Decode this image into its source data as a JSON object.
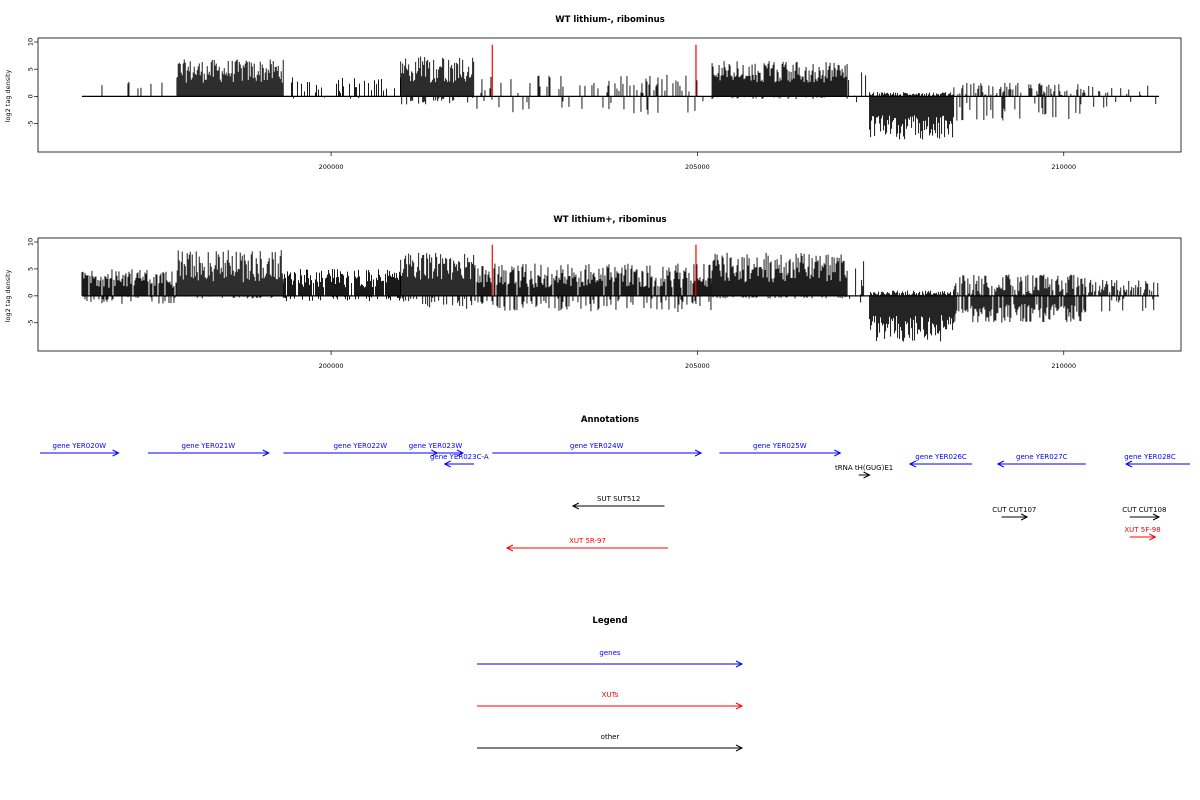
{
  "chart_data": [
    {
      "type": "bar",
      "title": "WT lithium-, ribominus",
      "xlabel": "",
      "ylabel": "log2 tag density",
      "xlim": [
        196000,
        211600
      ],
      "ylim": [
        -9.5,
        10
      ],
      "y_ticks": [
        "10",
        "5",
        "0",
        "-5"
      ],
      "x_ticks": [
        "200000",
        "205000",
        "210000"
      ],
      "grid": false,
      "marker_lines": {
        "x": [
          202200,
          204980
        ],
        "color": "#ff0000"
      },
      "series": [
        {
          "values_description_x": [
            196600,
            211300
          ],
          "segments": [
            {
              "x": [
                196600,
                197900
              ],
              "pos": [
                0.8,
                3.5
              ],
              "neg": [
                0,
                0
              ],
              "density": 0.12
            },
            {
              "x": [
                197900,
                199350
              ],
              "pos": [
                2.5,
                6.8
              ],
              "neg": [
                0,
                0
              ],
              "density": 1.0
            },
            {
              "x": [
                199350,
                200950
              ],
              "pos": [
                0.6,
                3.5
              ],
              "neg": [
                0,
                0.4
              ],
              "density": 0.25
            },
            {
              "x": [
                200950,
                201950
              ],
              "pos": [
                2.5,
                7.5
              ],
              "neg": [
                0,
                1.5
              ],
              "density": 1.0
            },
            {
              "x": [
                201950,
                205200
              ],
              "pos": [
                0.5,
                4.0
              ],
              "neg": [
                0.5,
                3.5
              ],
              "density": 0.22
            },
            {
              "x": [
                205200,
                207050
              ],
              "pos": [
                2.5,
                6.5
              ],
              "neg": [
                0,
                0.5
              ],
              "density": 1.0
            },
            {
              "x": [
                207050,
                207350
              ],
              "pos": [
                0,
                6.0
              ],
              "neg": [
                0,
                1.5
              ],
              "density": 0.2
            },
            {
              "x": [
                207350,
                208500
              ],
              "pos": [
                0,
                0.8
              ],
              "neg": [
                3.5,
                8.0
              ],
              "density": 1.0
            },
            {
              "x": [
                208500,
                210300
              ],
              "pos": [
                0,
                2.5
              ],
              "neg": [
                1.0,
                4.5
              ],
              "density": 0.6
            },
            {
              "x": [
                210300,
                211300
              ],
              "pos": [
                0,
                2.0
              ],
              "neg": [
                0.5,
                2.5
              ],
              "density": 0.25
            }
          ]
        }
      ]
    },
    {
      "type": "bar",
      "title": "WT lithium+, ribominus",
      "xlabel": "",
      "ylabel": "log2 tag density",
      "xlim": [
        196000,
        211600
      ],
      "ylim": [
        -9.5,
        10
      ],
      "y_ticks": [
        "10",
        "5",
        "0",
        "-5"
      ],
      "x_ticks": [
        "200000",
        "205000",
        "210000"
      ],
      "grid": false,
      "marker_lines": {
        "x": [
          202200,
          204980
        ],
        "color": "#ff0000"
      },
      "series": [
        {
          "segments": [
            {
              "x": [
                196600,
                197900
              ],
              "pos": [
                1.5,
                5.0
              ],
              "neg": [
                0,
                1.5
              ],
              "density": 0.9
            },
            {
              "x": [
                197900,
                199350
              ],
              "pos": [
                2.5,
                8.5
              ],
              "neg": [
                0,
                0.5
              ],
              "density": 1.0
            },
            {
              "x": [
                199350,
                200950
              ],
              "pos": [
                1.5,
                5.0
              ],
              "neg": [
                0,
                1.0
              ],
              "density": 0.9
            },
            {
              "x": [
                200950,
                201950
              ],
              "pos": [
                3.0,
                8.0
              ],
              "neg": [
                0,
                2.5
              ],
              "density": 1.0
            },
            {
              "x": [
                201950,
                205200
              ],
              "pos": [
                1.5,
                6.0
              ],
              "neg": [
                0.5,
                3.0
              ],
              "density": 0.9
            },
            {
              "x": [
                205200,
                207050
              ],
              "pos": [
                2.5,
                8.0
              ],
              "neg": [
                0,
                0.5
              ],
              "density": 1.0
            },
            {
              "x": [
                207050,
                207350
              ],
              "pos": [
                0,
                7.5
              ],
              "neg": [
                0,
                2.0
              ],
              "density": 0.2
            },
            {
              "x": [
                207350,
                208500
              ],
              "pos": [
                0,
                1.0
              ],
              "neg": [
                3.5,
                8.5
              ],
              "density": 1.0
            },
            {
              "x": [
                208500,
                210300
              ],
              "pos": [
                0,
                4.0
              ],
              "neg": [
                1.5,
                5.0
              ],
              "density": 0.85
            },
            {
              "x": [
                210300,
                211300
              ],
              "pos": [
                0.5,
                3.0
              ],
              "neg": [
                0.5,
                3.0
              ],
              "density": 0.6
            }
          ]
        }
      ]
    }
  ],
  "annotations": {
    "title": "Annotations",
    "items": [
      {
        "label": "gene YER020W",
        "color": "#0000ff",
        "x1": 196000,
        "x2": 197100,
        "dir": "right"
      },
      {
        "label": "gene YER021W",
        "color": "#0000ff",
        "x1": 197500,
        "x2": 199150,
        "dir": "right"
      },
      {
        "label": "gene YER022W",
        "color": "#0000ff",
        "x1": 199350,
        "x2": 201450,
        "dir": "right"
      },
      {
        "label": "gene YER023W",
        "color": "#0000ff",
        "x1": 201050,
        "x2": 201800,
        "dir": "right"
      },
      {
        "label": "gene YER023C-A",
        "color": "#0000ff",
        "x1": 201550,
        "x2": 201950,
        "dir": "left"
      },
      {
        "label": "gene YER024W",
        "color": "#0000ff",
        "x1": 202200,
        "x2": 205050,
        "dir": "right"
      },
      {
        "label": "gene YER025W",
        "color": "#0000ff",
        "x1": 205300,
        "x2": 206950,
        "dir": "right"
      },
      {
        "label": "tRNA tH(GUG)E1",
        "color": "#000000",
        "x1": 207200,
        "x2": 207350,
        "dir": "right"
      },
      {
        "label": "gene YER026C",
        "color": "#0000ff",
        "x1": 207900,
        "x2": 208750,
        "dir": "left"
      },
      {
        "label": "gene YER027C",
        "color": "#0000ff",
        "x1": 209100,
        "x2": 210300,
        "dir": "left"
      },
      {
        "label": "gene YER028C",
        "color": "#0000ff",
        "x1": 210850,
        "x2": 211800,
        "dir": "left"
      },
      {
        "label": "SUT SUT512",
        "color": "#000000",
        "x1": 203300,
        "x2": 204550,
        "dir": "left"
      },
      {
        "label": "CUT CUT107",
        "color": "#000000",
        "x1": 209150,
        "x2": 209500,
        "dir": "right"
      },
      {
        "label": "CUT CUT108",
        "color": "#000000",
        "x1": 210900,
        "x2": 211300,
        "dir": "right"
      },
      {
        "label": "XUT 5R-97",
        "color": "#ff0000",
        "x1": 202400,
        "x2": 204600,
        "dir": "left"
      },
      {
        "label": "XUT 5F-98",
        "color": "#ff0000",
        "x1": 210900,
        "x2": 211250,
        "dir": "right"
      }
    ]
  },
  "legend": {
    "title": "Legend",
    "items": [
      {
        "label": "genes",
        "color": "#0000ff"
      },
      {
        "label": "XUTs",
        "color": "#ff0000"
      },
      {
        "label": "other",
        "color": "#000000"
      }
    ]
  }
}
